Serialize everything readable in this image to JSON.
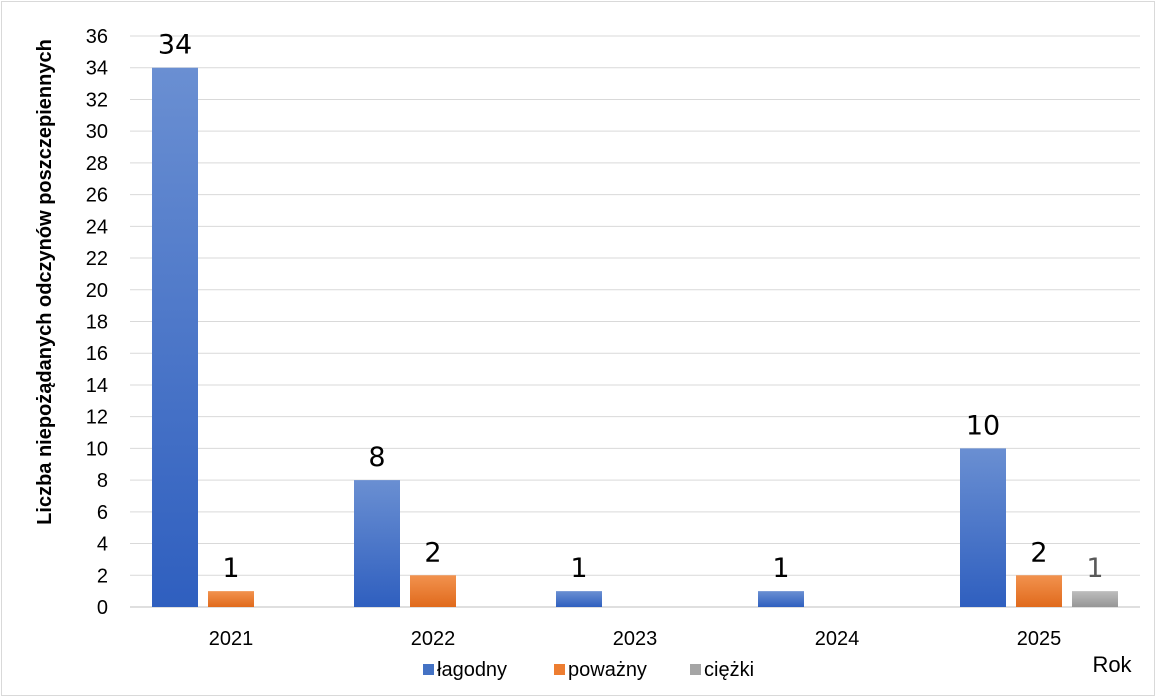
{
  "chart_data": {
    "type": "bar",
    "categories": [
      "2021",
      "2022",
      "2023",
      "2024",
      "2025"
    ],
    "series": [
      {
        "name": "łagodny",
        "color": "#4472c4",
        "values": [
          34,
          8,
          1,
          1,
          10
        ],
        "labels": [
          "34",
          "8",
          "1",
          "1",
          "10"
        ],
        "label_color": "#000000"
      },
      {
        "name": "poważny",
        "color": "#ed7d31",
        "values": [
          1,
          2,
          0,
          0,
          2
        ],
        "labels": [
          "1",
          "2",
          "",
          "",
          "2"
        ],
        "label_color": "#000000"
      },
      {
        "name": "ciężki",
        "color": "#a5a5a5",
        "values": [
          0,
          0,
          0,
          0,
          1
        ],
        "labels": [
          "",
          "",
          "",
          "",
          "1"
        ],
        "label_color": "#595959"
      }
    ],
    "ylabel": "Liczba niepożądanych odczynów poszczepiennych",
    "xlabel": "Rok",
    "ylim": [
      0,
      36
    ],
    "yticks": [
      "0",
      "2",
      "4",
      "6",
      "8",
      "10",
      "12",
      "14",
      "16",
      "18",
      "20",
      "22",
      "24",
      "26",
      "28",
      "30",
      "32",
      "34",
      "36"
    ],
    "grid": true,
    "legend_position": "bottom"
  }
}
